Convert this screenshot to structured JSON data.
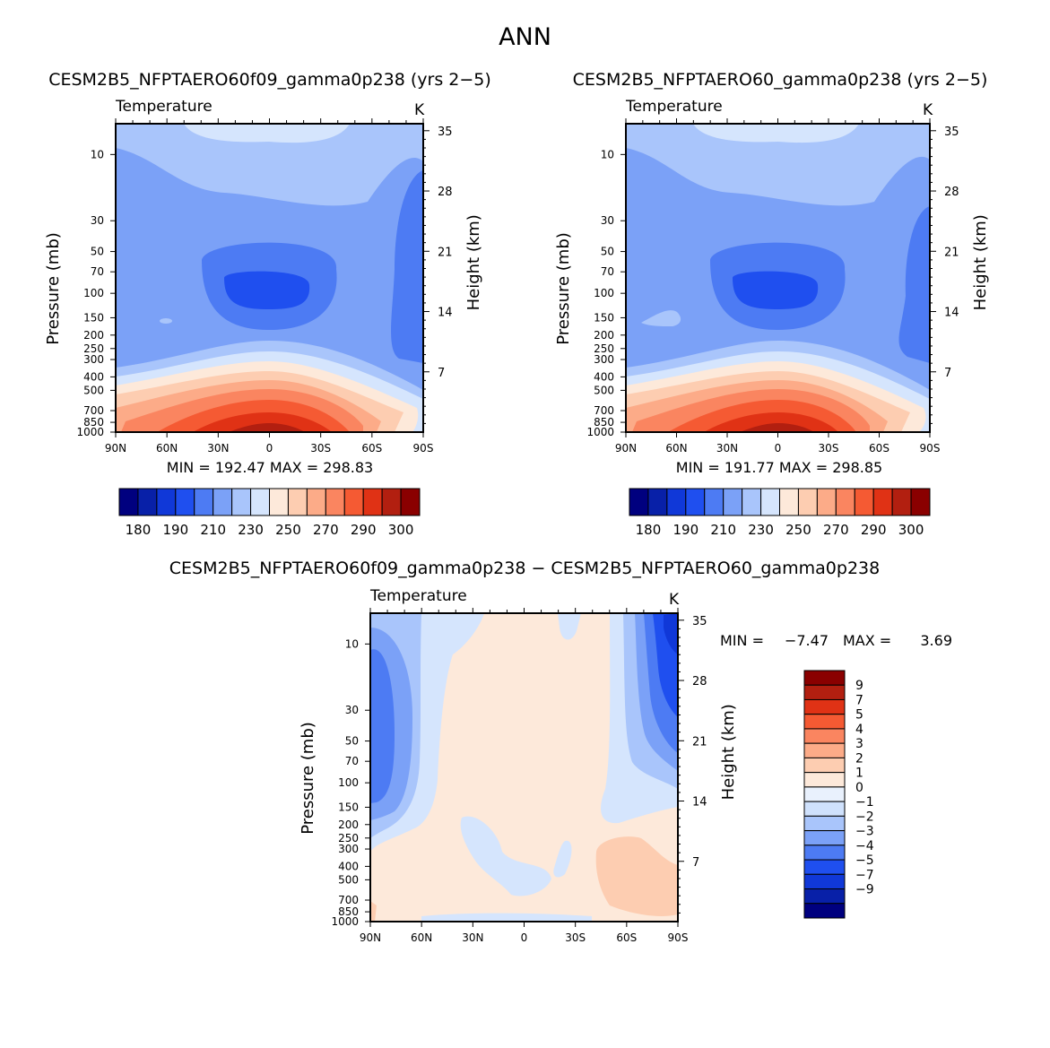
{
  "title": "ANN",
  "chart_data": [
    {
      "type": "contour",
      "title": "CESM2B5_NFPTAERO60f09_gamma0p238 (yrs 2−5)",
      "variable": "Temperature",
      "units": "K",
      "ylabel": "Pressure (mb)",
      "ylabel_right": "Height (km)",
      "x_ticks": [
        "90N",
        "60N",
        "30N",
        "0",
        "30S",
        "60S",
        "90S"
      ],
      "y_ticks": [
        "10",
        "30",
        "50",
        "70",
        "100",
        "150",
        "200",
        "250",
        "300",
        "400",
        "500",
        "700",
        "850",
        "1000"
      ],
      "height_ticks": [
        "35",
        "28",
        "21",
        "14",
        "7"
      ],
      "stats": "MIN = 192.47   MAX = 298.83",
      "min": 192.47,
      "max": 298.83,
      "colorbar_labels": [
        "180",
        "190",
        "210",
        "230",
        "250",
        "270",
        "290",
        "300"
      ]
    },
    {
      "type": "contour",
      "title": "CESM2B5_NFPTAERO60_gamma0p238 (yrs 2−5)",
      "variable": "Temperature",
      "units": "K",
      "ylabel": "Pressure (mb)",
      "ylabel_right": "Height (km)",
      "x_ticks": [
        "90N",
        "60N",
        "30N",
        "0",
        "30S",
        "60S",
        "90S"
      ],
      "y_ticks": [
        "10",
        "30",
        "50",
        "70",
        "100",
        "150",
        "200",
        "250",
        "300",
        "400",
        "500",
        "700",
        "850",
        "1000"
      ],
      "height_ticks": [
        "35",
        "28",
        "21",
        "14",
        "7"
      ],
      "stats": "MIN = 191.77   MAX = 298.85",
      "min": 191.77,
      "max": 298.85,
      "colorbar_labels": [
        "180",
        "190",
        "210",
        "230",
        "250",
        "270",
        "290",
        "300"
      ]
    },
    {
      "type": "contour",
      "title": "CESM2B5_NFPTAERO60f09_gamma0p238 − CESM2B5_NFPTAERO60_gamma0p238",
      "variable": "Temperature",
      "units": "K",
      "ylabel": "Pressure (mb)",
      "ylabel_right": "Height (km)",
      "x_ticks": [
        "90N",
        "60N",
        "30N",
        "0",
        "30S",
        "60S",
        "90S"
      ],
      "y_ticks": [
        "10",
        "30",
        "50",
        "70",
        "100",
        "150",
        "200",
        "250",
        "300",
        "400",
        "500",
        "700",
        "850",
        "1000"
      ],
      "height_ticks": [
        "35",
        "28",
        "21",
        "14",
        "7"
      ],
      "stats_min_label": "MIN =",
      "stats_min_value": "−7.47",
      "stats_max_label": "MAX =",
      "stats_max_value": "3.69",
      "min": -7.47,
      "max": 3.69,
      "colorbar_labels": [
        "9",
        "7",
        "5",
        "4",
        "3",
        "2",
        "1",
        "0",
        "−1",
        "−2",
        "−3",
        "−4",
        "−5",
        "−7",
        "−9"
      ]
    }
  ],
  "colors": {
    "temp_scale": [
      "#00007f",
      "#0820a8",
      "#1038d8",
      "#1f4fef",
      "#4d7bf3",
      "#7ba1f7",
      "#a9c5fb",
      "#d5e5fd",
      "#fde9da",
      "#fdcdb1",
      "#fcab88",
      "#fa8560",
      "#f55a33",
      "#e03215",
      "#b21f10",
      "#8a0000"
    ],
    "diff_scale": [
      "#8a0000",
      "#b21f10",
      "#e03215",
      "#f55a33",
      "#fa8560",
      "#fcab88",
      "#fdcdb1",
      "#fde9da",
      "#e9f1fd",
      "#cfe1fc",
      "#a9c5fb",
      "#7ba1f7",
      "#4d7bf3",
      "#1f4fef",
      "#1038d8",
      "#0820a8",
      "#00007f"
    ]
  }
}
